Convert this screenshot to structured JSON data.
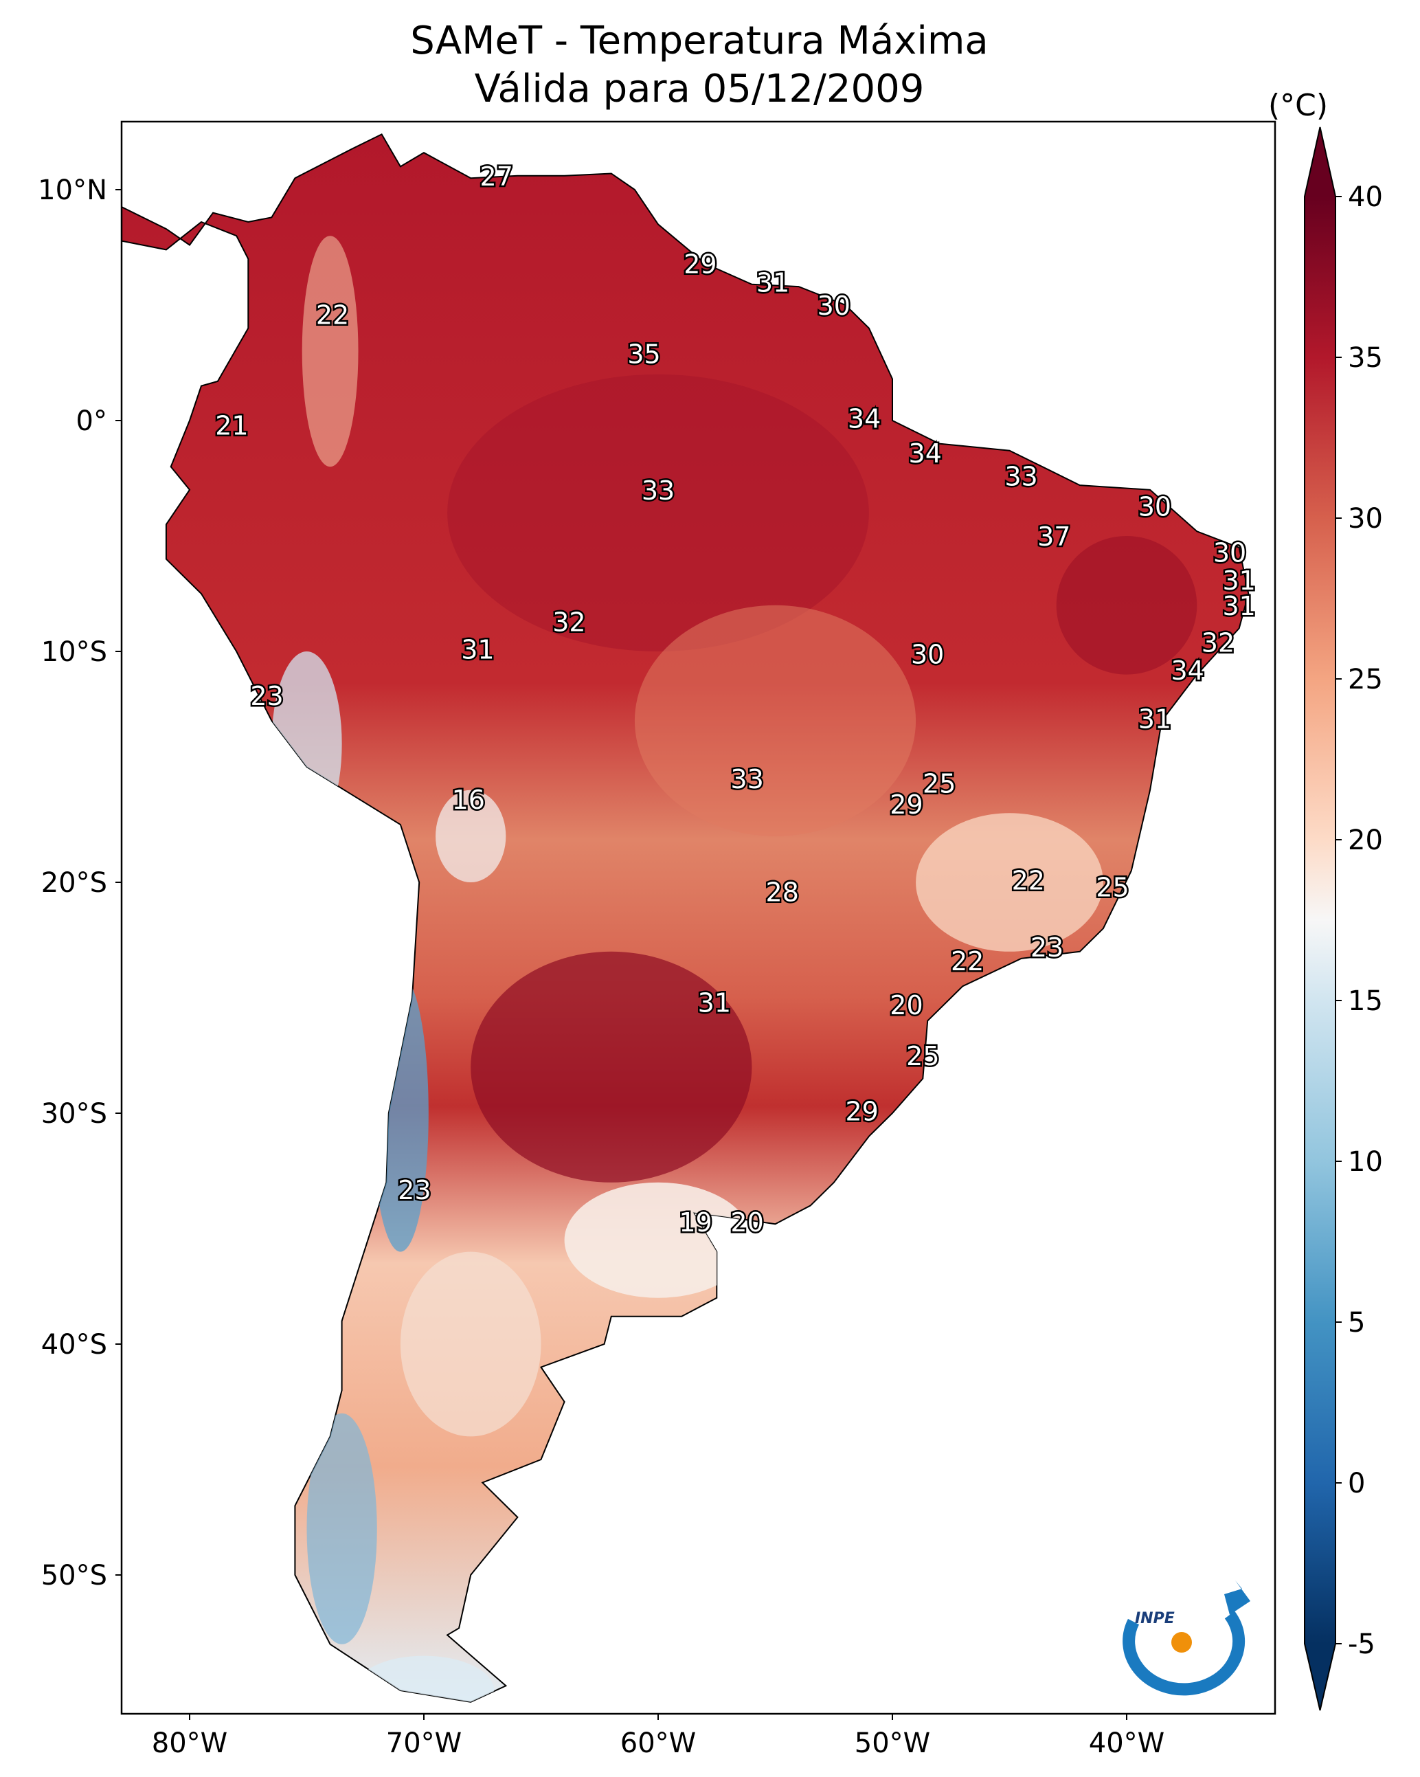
{
  "title": {
    "line1": "SAMeT - Temperatura Máxima",
    "line2": "Válida para 05/12/2009"
  },
  "chart_data": {
    "type": "map",
    "title": "SAMeT - Temperatura Máxima / Válida para 05/12/2009",
    "variable": "Maximum temperature",
    "extent": {
      "lon": [
        -82.9,
        -33.7
      ],
      "lat": [
        -56,
        12.9
      ]
    },
    "lat_ticks": [
      {
        "value": 10,
        "label": "10°N"
      },
      {
        "value": 0,
        "label": "0°"
      },
      {
        "value": -10,
        "label": "10°S"
      },
      {
        "value": -20,
        "label": "20°S"
      },
      {
        "value": -30,
        "label": "30°S"
      },
      {
        "value": -40,
        "label": "40°S"
      },
      {
        "value": -50,
        "label": "50°S"
      }
    ],
    "lon_ticks": [
      {
        "value": -80,
        "label": "80°W"
      },
      {
        "value": -70,
        "label": "70°W"
      },
      {
        "value": -60,
        "label": "60°W"
      },
      {
        "value": -50,
        "label": "50°W"
      },
      {
        "value": -40,
        "label": "40°W"
      }
    ],
    "colorbar": {
      "unit": "(°C)",
      "range": [
        -5,
        40
      ],
      "extend": "both",
      "ticks": [
        {
          "value": 40,
          "label": "40"
        },
        {
          "value": 35,
          "label": "35"
        },
        {
          "value": 30,
          "label": "30"
        },
        {
          "value": 25,
          "label": "25"
        },
        {
          "value": 20,
          "label": "20"
        },
        {
          "value": 15,
          "label": "15"
        },
        {
          "value": 10,
          "label": "10"
        },
        {
          "value": 5,
          "label": "5"
        },
        {
          "value": 0,
          "label": "0"
        },
        {
          "value": -5,
          "label": "-5"
        }
      ],
      "stops": [
        [
          "-5",
          "#053061"
        ],
        [
          "0",
          "#2166ac"
        ],
        [
          "5",
          "#4393c3"
        ],
        [
          "10",
          "#92c5de"
        ],
        [
          "15",
          "#d1e5f0"
        ],
        [
          "17.5",
          "#f7f7f7"
        ],
        [
          "20",
          "#fddbc7"
        ],
        [
          "25",
          "#f4a582"
        ],
        [
          "30",
          "#d6604d"
        ],
        [
          "35",
          "#b2182b"
        ],
        [
          "40",
          "#67001f"
        ]
      ]
    },
    "station_labels": [
      {
        "lon": -66.9,
        "lat": 10.6,
        "label": "27"
      },
      {
        "lon": -58.2,
        "lat": 6.8,
        "label": "29"
      },
      {
        "lon": -55.1,
        "lat": 6.0,
        "label": "31"
      },
      {
        "lon": -52.5,
        "lat": 5.0,
        "label": "30"
      },
      {
        "lon": -73.9,
        "lat": 4.6,
        "label": "22"
      },
      {
        "lon": -60.6,
        "lat": 2.9,
        "label": "35"
      },
      {
        "lon": -78.2,
        "lat": -0.2,
        "label": "21"
      },
      {
        "lon": -51.2,
        "lat": 0.1,
        "label": "34"
      },
      {
        "lon": -48.6,
        "lat": -1.4,
        "label": "34"
      },
      {
        "lon": -44.5,
        "lat": -2.4,
        "label": "33"
      },
      {
        "lon": -60.0,
        "lat": -3.0,
        "label": "33"
      },
      {
        "lon": -38.8,
        "lat": -3.7,
        "label": "30"
      },
      {
        "lon": -43.1,
        "lat": -5.0,
        "label": "37"
      },
      {
        "lon": -35.6,
        "lat": -5.7,
        "label": "30"
      },
      {
        "lon": -35.2,
        "lat": -6.9,
        "label": "31"
      },
      {
        "lon": -35.2,
        "lat": -8.0,
        "label": "31"
      },
      {
        "lon": -63.8,
        "lat": -8.7,
        "label": "32"
      },
      {
        "lon": -36.1,
        "lat": -9.6,
        "label": "32"
      },
      {
        "lon": -67.7,
        "lat": -9.9,
        "label": "31"
      },
      {
        "lon": -48.5,
        "lat": -10.1,
        "label": "30"
      },
      {
        "lon": -37.4,
        "lat": -10.8,
        "label": "34"
      },
      {
        "lon": -76.7,
        "lat": -11.9,
        "label": "23"
      },
      {
        "lon": -38.8,
        "lat": -12.9,
        "label": "31"
      },
      {
        "lon": -56.2,
        "lat": -15.5,
        "label": "33"
      },
      {
        "lon": -48.0,
        "lat": -15.7,
        "label": "25"
      },
      {
        "lon": -68.1,
        "lat": -16.4,
        "label": "16"
      },
      {
        "lon": -49.4,
        "lat": -16.6,
        "label": "29"
      },
      {
        "lon": -44.2,
        "lat": -19.9,
        "label": "22"
      },
      {
        "lon": -40.6,
        "lat": -20.2,
        "label": "25"
      },
      {
        "lon": -54.7,
        "lat": -20.4,
        "label": "28"
      },
      {
        "lon": -43.4,
        "lat": -22.8,
        "label": "23"
      },
      {
        "lon": -46.8,
        "lat": -23.4,
        "label": "22"
      },
      {
        "lon": -57.6,
        "lat": -25.2,
        "label": "31"
      },
      {
        "lon": -49.4,
        "lat": -25.3,
        "label": "20"
      },
      {
        "lon": -48.7,
        "lat": -27.5,
        "label": "25"
      },
      {
        "lon": -51.3,
        "lat": -29.9,
        "label": "29"
      },
      {
        "lon": -70.4,
        "lat": -33.3,
        "label": "23"
      },
      {
        "lon": -58.4,
        "lat": -34.7,
        "label": "19"
      },
      {
        "lon": -56.2,
        "lat": -34.7,
        "label": "20"
      }
    ]
  },
  "logo": {
    "text": "INPE",
    "colors": {
      "blue": "#1a7ac0",
      "orange": "#f0900a"
    }
  }
}
